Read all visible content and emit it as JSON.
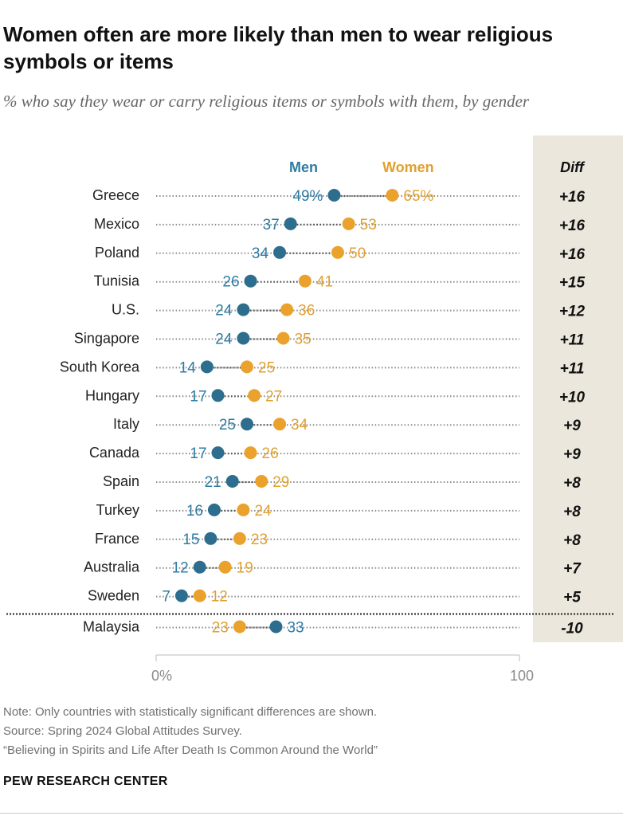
{
  "title": "Women often are more likely than men to wear religious symbols or items",
  "subtitle": "% who say they wear or carry religious items or symbols with them, by gender",
  "legend": {
    "men": "Men",
    "women": "Women",
    "diff": "Diff"
  },
  "colors": {
    "men": "#2d6e8e",
    "women": "#eaa22c",
    "men_text": "#2f7ba3",
    "women_text": "#e0a030",
    "diff_bg": "#ebe7dc"
  },
  "notes": {
    "note": "Note: Only countries with statistically significant differences are shown.",
    "source": "Source: Spring 2024 Global Attitudes Survey.",
    "report": "“Believing in Spirits and Life After Death Is Common Around the World”"
  },
  "brand": "PEW RESEARCH CENTER",
  "chart_data": {
    "type": "scatter",
    "title": "Women often are more likely than men to wear religious symbols or items",
    "xlabel": "",
    "ylabel": "",
    "xlim": [
      0,
      100
    ],
    "x_tick_labels": [
      "0%",
      "100"
    ],
    "categories": [
      "Greece",
      "Mexico",
      "Poland",
      "Tunisia",
      "U.S.",
      "Singapore",
      "South Korea",
      "Hungary",
      "Italy",
      "Canada",
      "Spain",
      "Turkey",
      "France",
      "Australia",
      "Sweden",
      "Malaysia"
    ],
    "series": [
      {
        "name": "Men",
        "values": [
          49,
          37,
          34,
          26,
          24,
          24,
          14,
          17,
          25,
          17,
          21,
          16,
          15,
          12,
          7,
          33
        ],
        "labels": [
          "49%",
          "37",
          "34",
          "26",
          "24",
          "24",
          "14",
          "17",
          "25",
          "17",
          "21",
          "16",
          "15",
          "12",
          "7",
          "33"
        ]
      },
      {
        "name": "Women",
        "values": [
          65,
          53,
          50,
          41,
          36,
          35,
          25,
          27,
          34,
          26,
          29,
          24,
          23,
          19,
          12,
          23
        ],
        "labels": [
          "65%",
          "53",
          "50",
          "41",
          "36",
          "35",
          "25",
          "27",
          "34",
          "26",
          "29",
          "24",
          "23",
          "19",
          "12",
          "23"
        ]
      }
    ],
    "diff": [
      "+16",
      "+16",
      "+16",
      "+15",
      "+12",
      "+11",
      "+11",
      "+10",
      "+9",
      "+9",
      "+8",
      "+8",
      "+8",
      "+7",
      "+5",
      "-10"
    ]
  }
}
